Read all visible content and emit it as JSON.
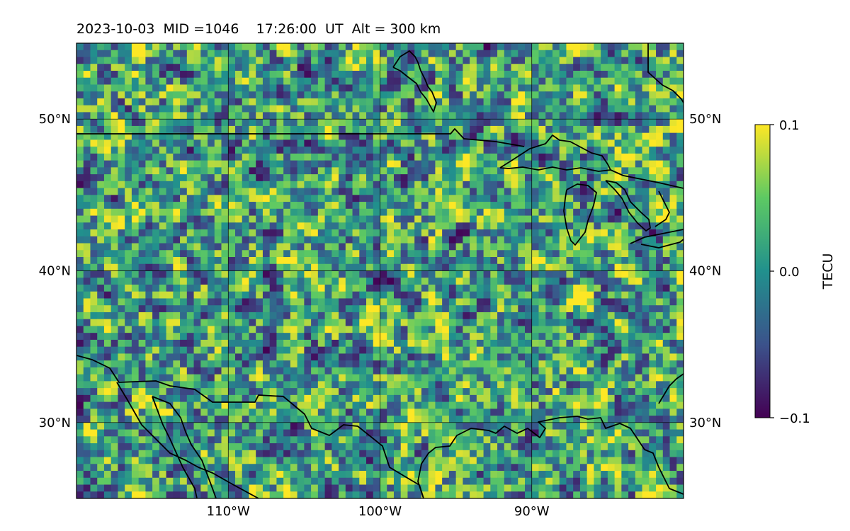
{
  "title": {
    "date": "2023-10-03",
    "mid": "MID =1046",
    "time": "17:26:00  UT",
    "alt": "Alt = 300 km"
  },
  "map": {
    "lon_range": [
      -120,
      -80
    ],
    "lat_range": [
      25,
      55
    ],
    "lat_ticks": [
      {
        "value": 30,
        "label": "30°N"
      },
      {
        "value": 40,
        "label": "40°N"
      },
      {
        "value": 50,
        "label": "50°N"
      }
    ],
    "lon_ticks": [
      {
        "value": -110,
        "label": "110°W"
      },
      {
        "value": -100,
        "label": "100°W"
      },
      {
        "value": -90,
        "label": "90°W"
      }
    ],
    "grid": true,
    "colormap": "viridis"
  },
  "colorbar": {
    "label": "TECU",
    "min": -0.1,
    "max": 0.1,
    "ticks": [
      {
        "value": 0.1,
        "label": "0.1"
      },
      {
        "value": 0.0,
        "label": "0.0"
      },
      {
        "value": -0.1,
        "label": "−0.1"
      }
    ],
    "colors": [
      "#440154",
      "#3b528b",
      "#21908d",
      "#5dc963",
      "#fde725"
    ]
  }
}
